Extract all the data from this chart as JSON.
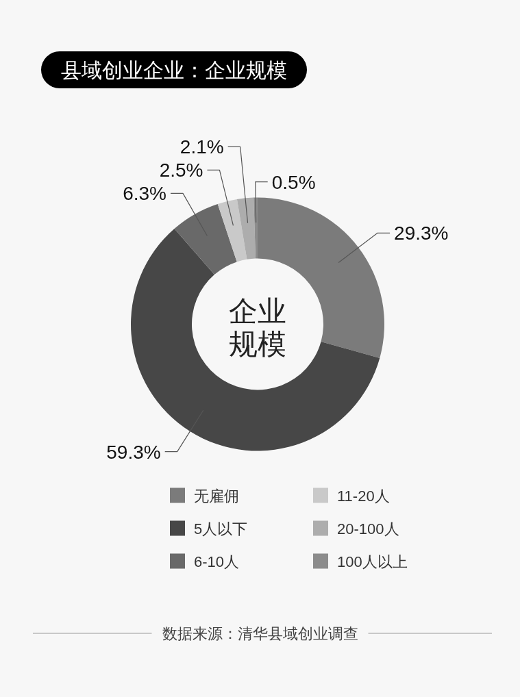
{
  "chart_data": {
    "type": "donut",
    "title": "县域创业企业：企业规模",
    "categories": [
      "无雇佣",
      "5人以下",
      "6-10人",
      "11-20人",
      "20-100人",
      "100人以上"
    ],
    "values": [
      29.3,
      59.3,
      6.3,
      2.5,
      2.1,
      0.5
    ],
    "colors": [
      "#7b7b7b",
      "#474747",
      "#696969",
      "#c9c9c9",
      "#adadad",
      "#8c8c8c"
    ],
    "value_labels": [
      "29.3%",
      "59.3%",
      "6.3%",
      "2.5%",
      "2.1%",
      "0.5%"
    ],
    "legend": "bottom",
    "annotations": [
      "企业规模",
      "数据来源：清华县域创业调查"
    ]
  }
}
